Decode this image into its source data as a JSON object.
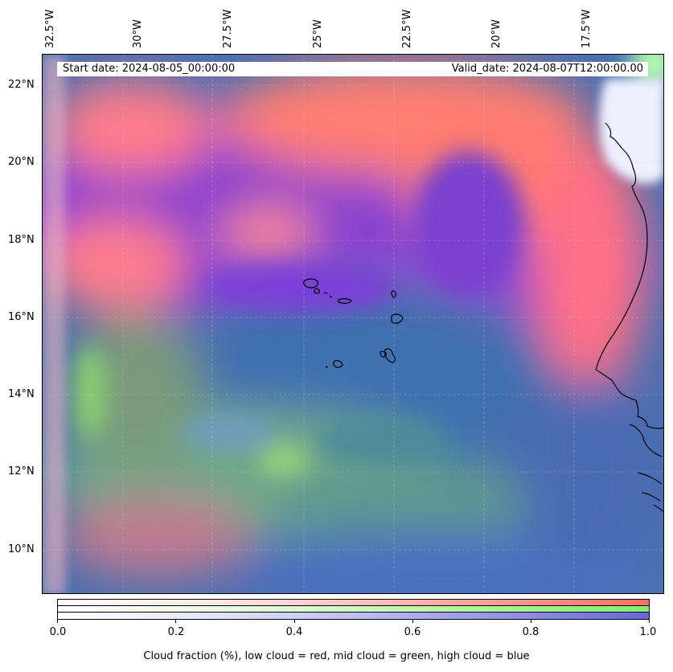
{
  "map": {
    "lon_ticks": [
      "32.5°W",
      "30°W",
      "27.5°W",
      "25°W",
      "22.5°W",
      "20°W",
      "17.5°W"
    ],
    "lat_ticks": [
      "22°N",
      "20°N",
      "18°N",
      "16°N",
      "14°N",
      "12°N",
      "10°N"
    ],
    "start_date": "Start date: 2024-08-05_00:00:00",
    "valid_date": "Valid_date: 2024-08-07T12:00:00.00",
    "colors": {
      "low_cloud": "#ff7b70",
      "mid_cloud": "#82ea6c",
      "high_cloud": "#6a6ad8",
      "low_high_mix": "#8b3fd6",
      "mid_high_mix": "#3f78a8",
      "coastline": "#000000"
    }
  },
  "colorbar": {
    "ticks": [
      "0.0",
      "0.2",
      "0.4",
      "0.6",
      "0.8",
      "1.0"
    ],
    "caption": "Cloud fraction (%), low cloud = red, mid cloud = green, high cloud = blue"
  }
}
